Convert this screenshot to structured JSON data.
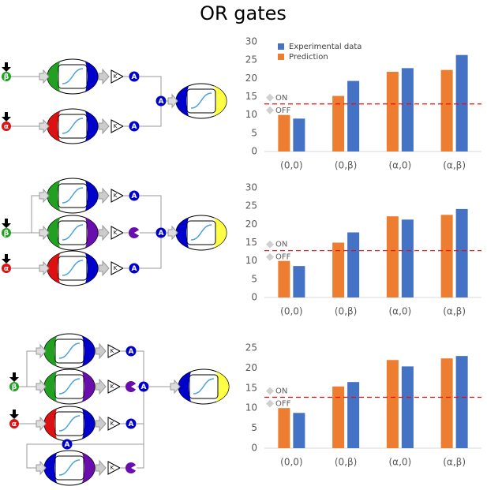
{
  "title": "OR gates",
  "diagram_labels": {
    "beta": "β",
    "alpha": "α",
    "node": "A",
    "gain": "K"
  },
  "chart_data": [
    {
      "type": "bar",
      "categories": [
        "(0,0)",
        "(0,β)",
        "(α,0)",
        "(α,β)"
      ],
      "series": [
        {
          "name": "Experimental data",
          "color": "#4472c4",
          "values": [
            9,
            19.3,
            22.8,
            26.4
          ]
        },
        {
          "name": "Prediction",
          "color": "#ed7d31",
          "values": [
            10,
            15.2,
            21.8,
            22.3
          ]
        }
      ],
      "ylim": [
        0,
        30
      ],
      "yticks": [
        0,
        5,
        10,
        15,
        20,
        25,
        30
      ],
      "legend": "upper-left",
      "threshold": 13,
      "threshold_color": "#ff0000",
      "annotations": [
        "ON",
        "OFF"
      ]
    },
    {
      "type": "bar",
      "categories": [
        "(0,0)",
        "(0,β)",
        "(α,0)",
        "(α,β)"
      ],
      "series": [
        {
          "color": "#4472c4",
          "values": [
            8.6,
            17.8,
            21.3,
            24.2
          ]
        },
        {
          "color": "#ed7d31",
          "values": [
            10,
            15,
            22.2,
            22.6
          ]
        }
      ],
      "ylim": [
        0,
        30
      ],
      "yticks": [
        0,
        5,
        10,
        15,
        20,
        25,
        30
      ],
      "threshold": 12.8,
      "threshold_color": "#ff0000",
      "annotations": [
        "ON",
        "OFF"
      ]
    },
    {
      "type": "bar",
      "categories": [
        "(0,0)",
        "(0,β)",
        "(α,0)",
        "(α,β)"
      ],
      "series": [
        {
          "color": "#4472c4",
          "values": [
            8.8,
            16.5,
            20.4,
            23
          ]
        },
        {
          "color": "#ed7d31",
          "values": [
            10,
            15.4,
            22,
            22.4
          ]
        }
      ],
      "ylim": [
        0,
        25
      ],
      "yticks": [
        0,
        5,
        10,
        15,
        20,
        25
      ],
      "threshold": 12.7,
      "threshold_color": "#ff0000",
      "annotations": [
        "ON",
        "OFF"
      ]
    }
  ]
}
